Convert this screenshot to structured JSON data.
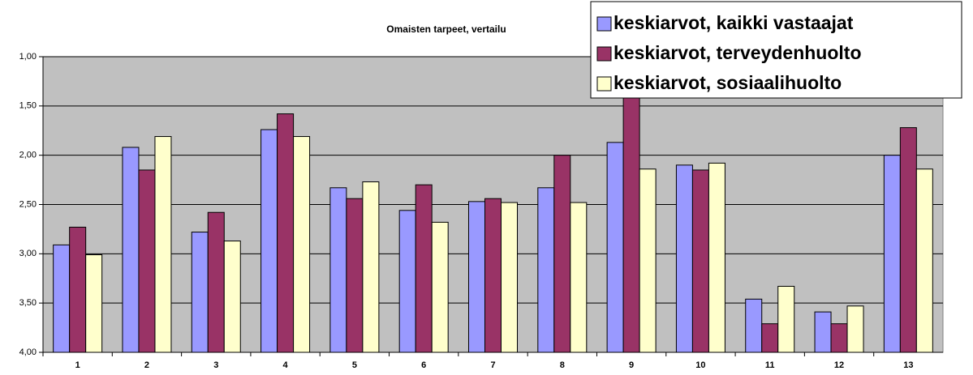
{
  "chart_data": {
    "type": "bar",
    "title": "Omaisten tarpeet, vertailu",
    "categories": [
      "1",
      "2",
      "3",
      "4",
      "5",
      "6",
      "7",
      "8",
      "9",
      "10",
      "11",
      "12",
      "13"
    ],
    "series": [
      {
        "name": "keskiarvot, kaikki vastaajat",
        "color": "#9999ff",
        "values": [
          2.91,
          1.92,
          2.78,
          1.74,
          2.33,
          2.56,
          2.47,
          2.33,
          1.87,
          2.1,
          3.46,
          3.59,
          2.0
        ]
      },
      {
        "name": "keskiarvot, terveydenhuolto",
        "color": "#993366",
        "values": [
          2.73,
          2.15,
          2.58,
          1.58,
          2.44,
          2.3,
          2.44,
          2.0,
          1.35,
          2.15,
          3.71,
          3.71,
          1.72
        ]
      },
      {
        "name": "keskiarvot, sosiaalihuolto",
        "color": "#ffffcc",
        "values": [
          3.01,
          1.81,
          2.87,
          1.81,
          2.27,
          2.68,
          2.48,
          2.48,
          2.14,
          2.08,
          3.33,
          3.53,
          2.14
        ]
      }
    ],
    "ylim": [
      4,
      1
    ],
    "yticks": [
      {
        "value": 1,
        "label": "1,00"
      },
      {
        "value": 1.5,
        "label": "1,50"
      },
      {
        "value": 2,
        "label": "2,00"
      },
      {
        "value": 2.5,
        "label": "2,50"
      },
      {
        "value": 3,
        "label": "3,00"
      },
      {
        "value": 3.5,
        "label": "3,50"
      },
      {
        "value": 4,
        "label": "4,00"
      }
    ],
    "grid": true,
    "legend": "top-right",
    "plot_background": "#c0c0c0"
  }
}
